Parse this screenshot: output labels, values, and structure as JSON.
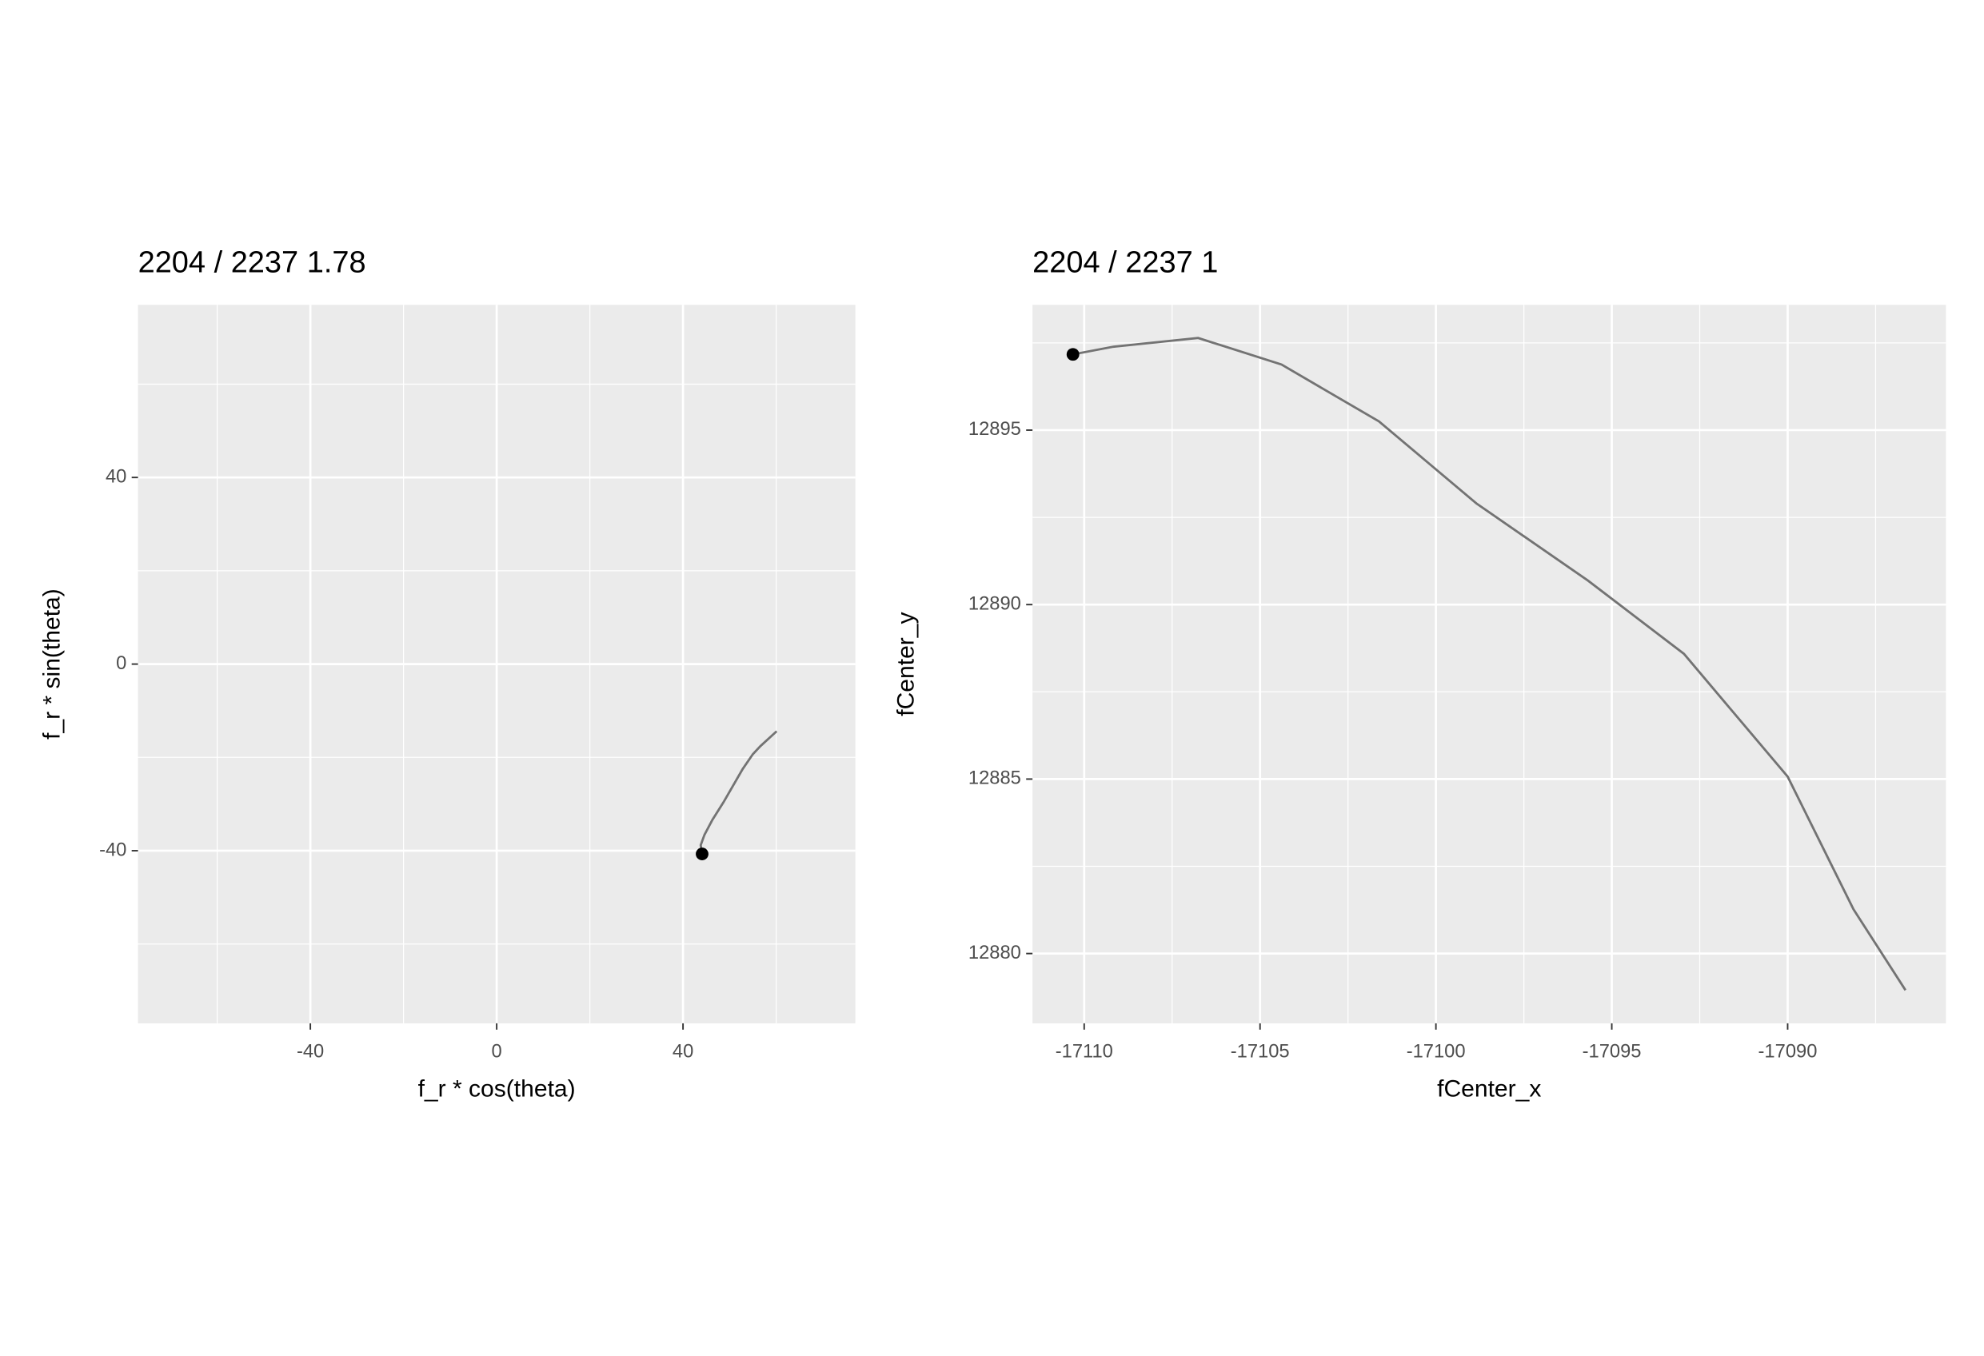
{
  "chart_data": [
    {
      "type": "line",
      "title": "2204 / 2237 1.78",
      "x_label": "f_r * cos(theta)",
      "y_label": "f_r * sin(theta)",
      "x": [
        44.1,
        43.8,
        44.6,
        46.3,
        48.7,
        52.8,
        55.0,
        56.6,
        60.1
      ],
      "series": [
        {
          "color": "#737373",
          "values": [
            -40.7,
            -38.8,
            -36.6,
            -33.4,
            -29.6,
            -22.5,
            -19.3,
            -17.6,
            -14.4
          ]
        }
      ],
      "marker": {
        "x": 44.1,
        "y": -40.7,
        "color": "#000000"
      },
      "xlim": [
        -77,
        77
      ],
      "ylim": [
        -77,
        77
      ],
      "xticks": [
        -40,
        0,
        40
      ],
      "yticks": [
        -40,
        0,
        40
      ],
      "grid": true
    },
    {
      "type": "line",
      "title": "2204 / 2237 1",
      "x_label": "fCenter_x",
      "y_label": "fCenter_y",
      "x": [
        -17110.32,
        -17109.17,
        -17106.76,
        -17104.39,
        -17101.62,
        -17098.85,
        -17095.68,
        -17092.95,
        -17090.0,
        -17088.13,
        -17086.65
      ],
      "series": [
        {
          "color": "#737373",
          "values": [
            12897.17,
            12897.39,
            12897.64,
            12896.88,
            12895.25,
            12892.9,
            12890.69,
            12888.59,
            12885.07,
            12881.27,
            12878.95
          ]
        }
      ],
      "marker": {
        "x": -17110.32,
        "y": 12897.17,
        "color": "#000000"
      },
      "xlim": [
        -17111.47,
        -17085.5
      ],
      "ylim": [
        12878.0,
        12898.59
      ],
      "xticks": [
        -17110,
        -17105,
        -17100,
        -17095,
        -17090
      ],
      "yticks": [
        12880,
        12885,
        12890,
        12895
      ],
      "grid": true
    }
  ]
}
